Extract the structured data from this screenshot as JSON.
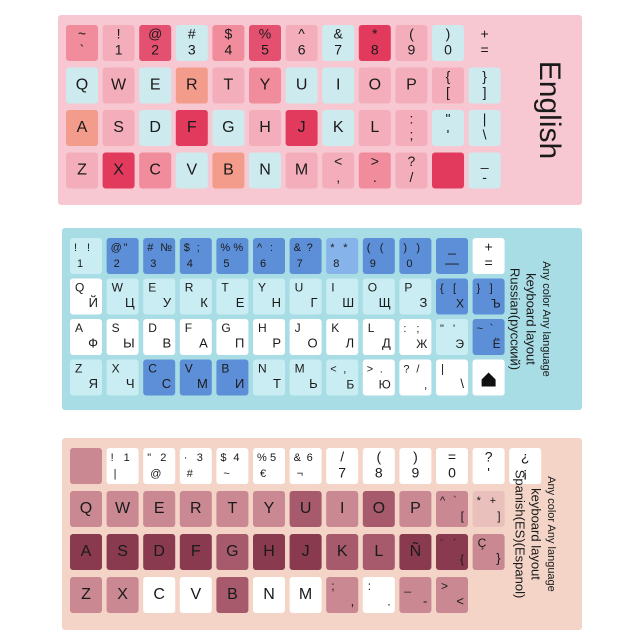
{
  "sheets": [
    {
      "label_lines": [
        "English"
      ],
      "rows": [
        [
          [
            "~",
            "`"
          ],
          [
            "!",
            "1"
          ],
          [
            "@",
            "2"
          ],
          [
            "#",
            "3"
          ],
          [
            "$",
            "4"
          ],
          [
            "%",
            "5"
          ],
          [
            "^",
            "6"
          ],
          [
            "&",
            "7"
          ],
          [
            "*",
            "8"
          ],
          [
            "(",
            "9"
          ],
          [
            ")",
            "0"
          ],
          [
            "+",
            "="
          ]
        ],
        [
          [
            "Q"
          ],
          [
            "W"
          ],
          [
            "E"
          ],
          [
            "R"
          ],
          [
            "T"
          ],
          [
            "Y"
          ],
          [
            "U"
          ],
          [
            "I"
          ],
          [
            "O"
          ],
          [
            "P"
          ],
          [
            "{",
            "["
          ],
          [
            "}",
            "]"
          ]
        ],
        [
          [
            "A"
          ],
          [
            "S"
          ],
          [
            "D"
          ],
          [
            "F"
          ],
          [
            "G"
          ],
          [
            "H"
          ],
          [
            "J"
          ],
          [
            "K"
          ],
          [
            "L"
          ],
          [
            ":",
            ";"
          ],
          [
            "\"",
            "'"
          ],
          [
            "|",
            "\\"
          ]
        ],
        [
          [
            "Z"
          ],
          [
            "X"
          ],
          [
            "C"
          ],
          [
            "V"
          ],
          [
            "B"
          ],
          [
            "N"
          ],
          [
            "M"
          ],
          [
            "<",
            ","
          ],
          [
            ">",
            "."
          ],
          [
            "?",
            "/"
          ],
          [],
          [
            "_",
            "-"
          ]
        ]
      ]
    },
    {
      "label_lines": [
        "Russian(русский)",
        "keyboard  layout",
        "Any color  Any language"
      ],
      "rows": [
        [
          [
            "!",
            "!",
            "1"
          ],
          [
            "@",
            "\"",
            "2"
          ],
          [
            "#",
            "№",
            "3"
          ],
          [
            "$",
            ";",
            "4"
          ],
          [
            "%",
            "%",
            "5"
          ],
          [
            "^",
            ":",
            "6"
          ],
          [
            "&",
            "?",
            "7"
          ],
          [
            "*",
            "*",
            "8"
          ],
          [
            "(",
            "(",
            "9"
          ],
          [
            ")",
            ")",
            "0"
          ],
          [
            "_",
            "—"
          ],
          [
            "+",
            "="
          ]
        ],
        [
          [
            "Q",
            "Й"
          ],
          [
            "W",
            "Ц"
          ],
          [
            "E",
            "У"
          ],
          [
            "R",
            "К"
          ],
          [
            "T",
            "Е"
          ],
          [
            "Y",
            "Н"
          ],
          [
            "U",
            "Г"
          ],
          [
            "I",
            "Ш"
          ],
          [
            "O",
            "Щ"
          ],
          [
            "P",
            "З"
          ],
          [
            "{",
            "[",
            "Х"
          ],
          [
            "}",
            "]",
            "Ъ"
          ]
        ],
        [
          [
            "A",
            "Ф"
          ],
          [
            "S",
            "Ы"
          ],
          [
            "D",
            "В"
          ],
          [
            "F",
            "А"
          ],
          [
            "G",
            "П"
          ],
          [
            "H",
            "Р"
          ],
          [
            "J",
            "О"
          ],
          [
            "K",
            "Л"
          ],
          [
            "L",
            "Д"
          ],
          [
            ":",
            ";",
            "Ж"
          ],
          [
            "\"",
            "'",
            "Э"
          ],
          [
            "~",
            "`",
            "Ё"
          ]
        ],
        [
          [
            "Z",
            "Я"
          ],
          [
            "X",
            "Ч"
          ],
          [
            "C",
            "С"
          ],
          [
            "V",
            "М"
          ],
          [
            "B",
            "И"
          ],
          [
            "N",
            "Т"
          ],
          [
            "M",
            "Ь"
          ],
          [
            "<",
            ",",
            "Б"
          ],
          [
            ">",
            ".",
            "Ю"
          ],
          [
            "?",
            "/",
            ","
          ],
          [
            "|",
            "\\"
          ],
          []
        ]
      ]
    },
    {
      "label_lines": [
        "Spanish(ES)(Espanol)",
        "keyboard  layout",
        "Any color  Any language"
      ],
      "rows": [
        [
          [],
          [
            "!",
            "1",
            "|"
          ],
          [
            "\"",
            "2",
            "@"
          ],
          [
            "·",
            "3",
            "#"
          ],
          [
            "$",
            "4",
            "~"
          ],
          [
            "%",
            "5",
            "€"
          ],
          [
            "&",
            "6",
            "¬"
          ],
          [
            "/",
            "7"
          ],
          [
            "(",
            "8"
          ],
          [
            ")",
            "9"
          ],
          [
            "=",
            "0"
          ],
          [
            "?",
            "'"
          ],
          [
            "¿",
            "¡"
          ]
        ],
        [
          [
            "Q"
          ],
          [
            "W"
          ],
          [
            "E"
          ],
          [
            "R"
          ],
          [
            "T"
          ],
          [
            "Y"
          ],
          [
            "U"
          ],
          [
            "I"
          ],
          [
            "O"
          ],
          [
            "P"
          ],
          [
            "^",
            "`",
            "["
          ],
          [
            "*",
            "+",
            "]"
          ]
        ],
        [
          [
            "A"
          ],
          [
            "S"
          ],
          [
            "D"
          ],
          [
            "F"
          ],
          [
            "G"
          ],
          [
            "H"
          ],
          [
            "J"
          ],
          [
            "K"
          ],
          [
            "L"
          ],
          [
            "Ñ"
          ],
          [
            "¨",
            "´",
            "{"
          ],
          [
            "Ç",
            "}"
          ]
        ],
        [
          [
            "Z"
          ],
          [
            "X"
          ],
          [
            "C"
          ],
          [
            "V"
          ],
          [
            "B"
          ],
          [
            "N"
          ],
          [
            "M"
          ],
          [
            ";",
            ","
          ],
          [
            ":",
            "."
          ],
          [
            "_",
            "-"
          ],
          [
            ">",
            "<"
          ]
        ]
      ]
    }
  ]
}
